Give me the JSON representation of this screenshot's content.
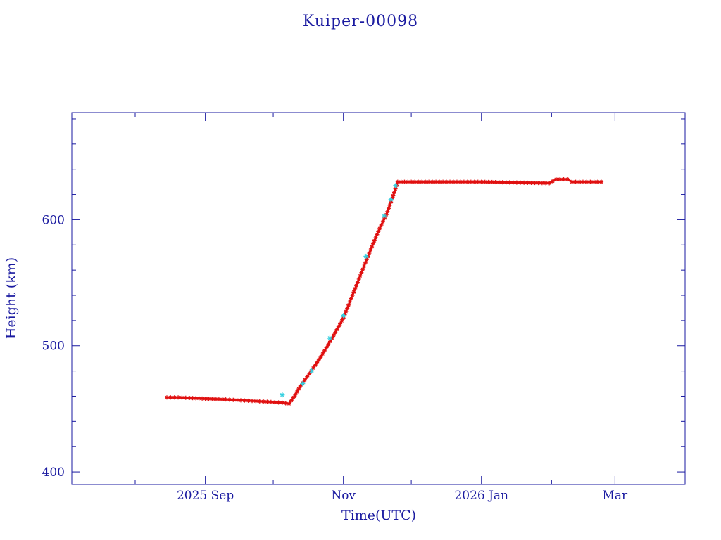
{
  "chart_data": {
    "type": "scatter",
    "title": "Kuiper-00098",
    "xlabel": "Time(UTC)",
    "ylabel": "Height (km)",
    "x_axis": {
      "type": "date",
      "range": [
        "2025-07-04",
        "2026-04-01"
      ],
      "tick_labels": [
        {
          "date": "2025-09-01",
          "label": "2025 Sep"
        },
        {
          "date": "2025-11-01",
          "label": "Nov"
        },
        {
          "date": "2026-01-01",
          "label": "2026 Jan"
        },
        {
          "date": "2026-03-01",
          "label": "Mar"
        }
      ],
      "minor_tick_dates": [
        "2025-08-01",
        "2025-10-01",
        "2025-12-01",
        "2026-02-01"
      ]
    },
    "y_axis": {
      "range": [
        390,
        685
      ],
      "tick_labels": [
        400,
        500,
        600
      ],
      "minor_tick_step": 20
    },
    "colors": {
      "frame": "#1a1aa0",
      "text": "#1a1aa0",
      "primary_series": "#e01010",
      "secondary_series": "#35d0e0"
    },
    "series": [
      {
        "color": "#e01010",
        "marker": "asterisk",
        "points": [
          [
            "2025-08-15",
            459
          ],
          [
            "2025-08-20",
            459
          ],
          [
            "2025-08-25",
            458.6
          ],
          [
            "2025-09-01",
            458
          ],
          [
            "2025-09-10",
            457.4
          ],
          [
            "2025-09-20",
            456.4
          ],
          [
            "2025-09-30",
            455.4
          ],
          [
            "2025-10-05",
            454.8
          ],
          [
            "2025-10-08",
            454
          ],
          [
            "2025-10-10",
            459
          ],
          [
            "2025-10-13",
            468
          ],
          [
            "2025-10-17",
            478
          ],
          [
            "2025-10-22",
            491
          ],
          [
            "2025-10-27",
            506
          ],
          [
            "2025-11-01",
            522
          ],
          [
            "2025-11-05",
            540
          ],
          [
            "2025-11-09",
            558
          ],
          [
            "2025-11-13",
            576
          ],
          [
            "2025-11-17",
            593
          ],
          [
            "2025-11-20",
            604
          ],
          [
            "2025-11-23",
            619
          ],
          [
            "2025-11-25",
            630
          ],
          [
            "2025-12-01",
            630
          ],
          [
            "2025-12-15",
            630
          ],
          [
            "2026-01-01",
            630
          ],
          [
            "2026-01-15",
            629.5
          ],
          [
            "2026-01-31",
            629
          ],
          [
            "2026-02-03",
            632
          ],
          [
            "2026-02-08",
            632
          ],
          [
            "2026-02-10",
            630
          ],
          [
            "2026-02-23",
            630
          ]
        ]
      },
      {
        "color": "#35d0e0",
        "marker": "asterisk",
        "points": [
          [
            "2025-10-05",
            461
          ],
          [
            "2025-10-14",
            470
          ],
          [
            "2025-10-18",
            480
          ],
          [
            "2025-10-26",
            506
          ],
          [
            "2025-11-01",
            524
          ],
          [
            "2025-11-11",
            571
          ],
          [
            "2025-11-19",
            603
          ],
          [
            "2025-11-22",
            616
          ],
          [
            "2025-11-24",
            627
          ]
        ]
      }
    ]
  }
}
